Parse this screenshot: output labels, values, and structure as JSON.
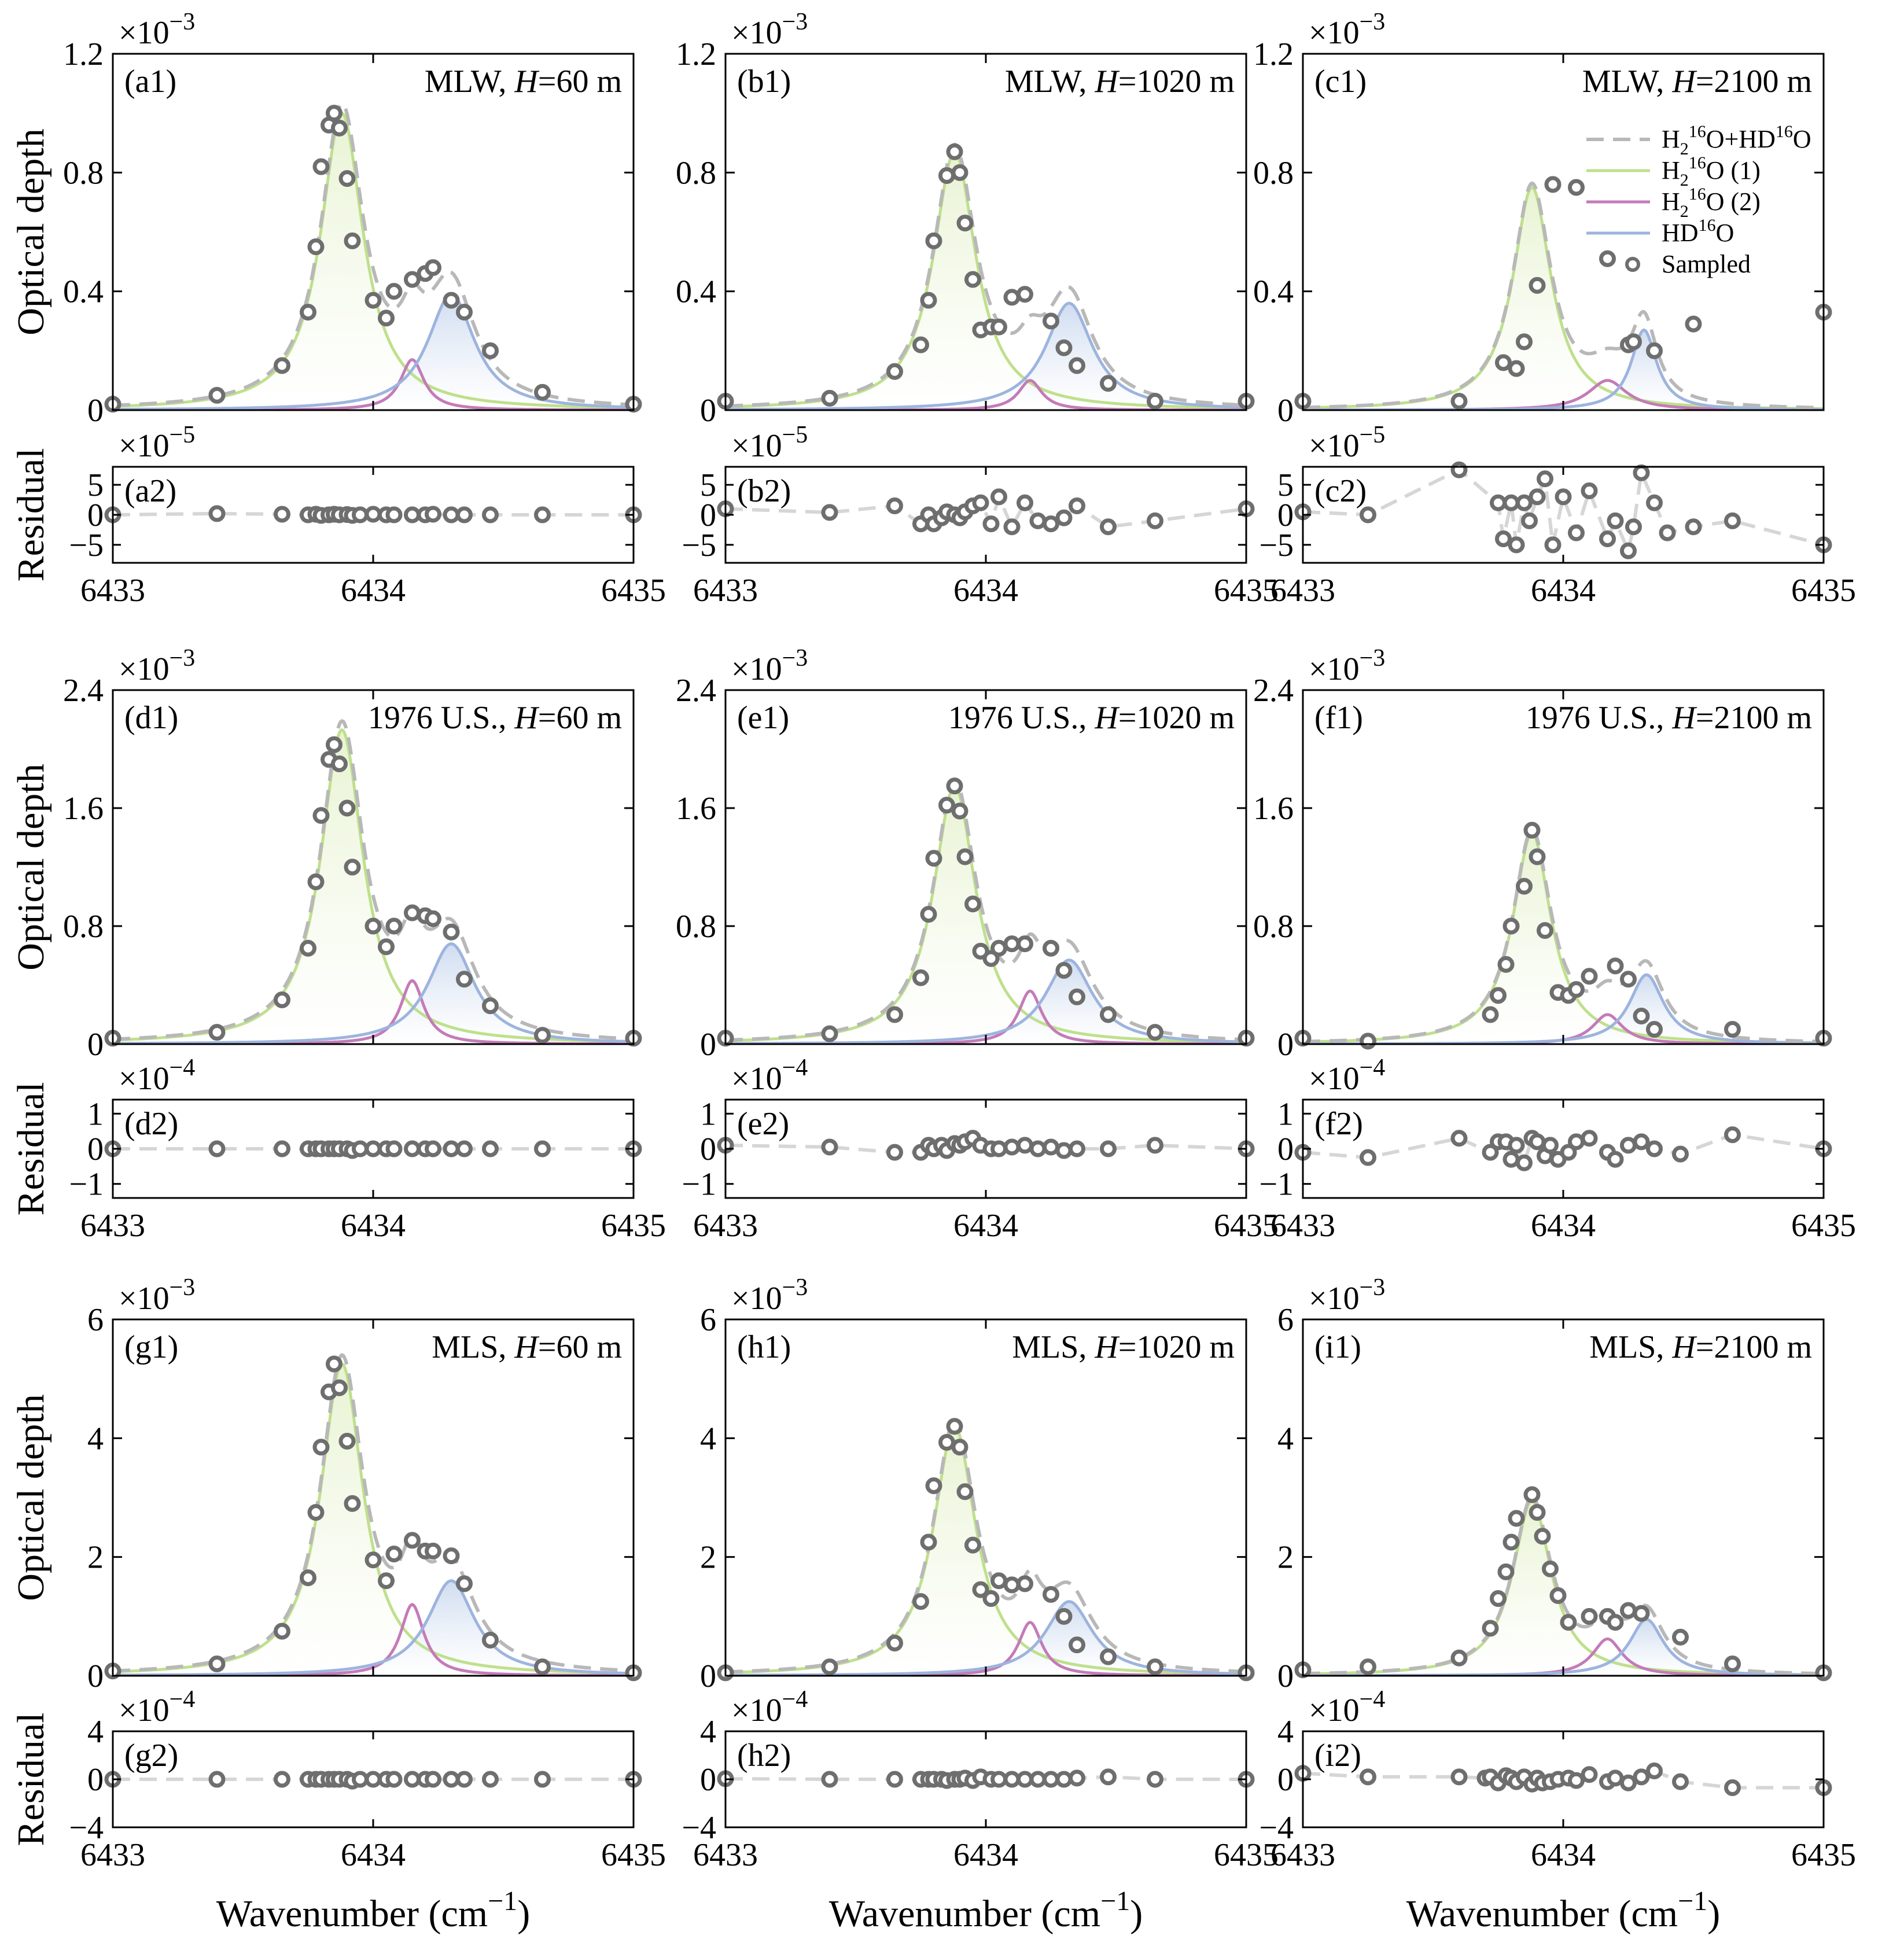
{
  "figure": {
    "xlabel": "Wavenumber (cm",
    "xlabel_sup": "−1",
    "xlabel_close": ")",
    "ylabel_top": "Optical depth",
    "ylabel_bottom": "Residual",
    "times": "×10"
  },
  "legend": {
    "items": [
      {
        "key": "total",
        "base": "H",
        "sub": "2",
        "sup": "16",
        "rest": "O+HD",
        "sup2": "16",
        "end": "O"
      },
      {
        "key": "h2o1",
        "base": "H",
        "sub": "2",
        "sup": "16",
        "rest": "O (1)",
        "sup2": "",
        "end": ""
      },
      {
        "key": "h2o2",
        "base": "H",
        "sub": "2",
        "sup": "16",
        "rest": "O (2)",
        "sup2": "",
        "end": ""
      },
      {
        "key": "hdo",
        "base": "HD",
        "sub": "",
        "sup": "16",
        "rest": "O",
        "sup2": "",
        "end": ""
      },
      {
        "key": "sampled",
        "base": "Sampled",
        "sub": "",
        "sup": "",
        "rest": "",
        "sup2": "",
        "end": ""
      }
    ]
  },
  "colors": {
    "total": "#b8b8b8",
    "h2o1": "#bfe08c",
    "h2o1_fill": "#e8f3d2",
    "h2o2": "#c47bb8",
    "hdo": "#9db4de",
    "hdo_fill": "#cfdcf0",
    "sampled": "#6e6e6e",
    "residual_line": "#d6d6d6"
  },
  "chart_data": [
    {
      "type": "line",
      "id": "a",
      "title": "MLW, ",
      "hval": "=60 m",
      "label1": "(a1)",
      "label2": "(a2)",
      "ymax": 1.2,
      "yticks": [
        "0",
        "0.4",
        "0.8",
        "1.2"
      ],
      "exp": "−3",
      "rmax": 8,
      "rticks": [
        "−5",
        "0",
        "5"
      ],
      "rtickvals": [
        -5,
        0,
        5
      ],
      "rexp": "−5",
      "xlim": [
        6433,
        6435
      ],
      "xticks": [
        "6433",
        "6434",
        "6435"
      ],
      "p1": {
        "x0": 6433.88,
        "A": 1.0,
        "w": 0.1
      },
      "p2": {
        "x0": 6434.15,
        "A": 0.17,
        "w": 0.055
      },
      "p3": {
        "x0": 6434.3,
        "A": 0.39,
        "w": 0.11
      },
      "y_points": [
        0.02,
        0.05,
        0.15,
        0.33,
        0.55,
        0.82,
        0.96,
        1.0,
        0.95,
        0.78,
        0.57,
        0.37,
        0.31,
        0.4,
        0.44,
        0.46,
        0.48,
        0.37,
        0.33,
        0.2,
        0.06,
        0.02
      ],
      "residual_x": [
        6433,
        6433.4,
        6433.65,
        6433.75,
        6433.78,
        6433.8,
        6433.83,
        6433.85,
        6433.87,
        6433.9,
        6433.92,
        6433.95,
        6434.0,
        6434.05,
        6434.08,
        6434.15,
        6434.2,
        6434.23,
        6434.3,
        6434.35,
        6434.45,
        6434.65,
        6435
      ],
      "residual_y": [
        0,
        0.2,
        0.1,
        0,
        0.1,
        -0.1,
        0,
        0.1,
        0,
        0.05,
        -0.1,
        0,
        0.1,
        0,
        0,
        0,
        0,
        0.1,
        0,
        0,
        0,
        0,
        0
      ]
    },
    {
      "type": "line",
      "id": "b",
      "title": "MLW, ",
      "hval": "=1020 m",
      "label1": "(b1)",
      "label2": "(b2)",
      "ymax": 1.2,
      "yticks": [
        "0",
        "0.4",
        "0.8",
        "1.2"
      ],
      "exp": "−3",
      "rmax": 8,
      "rticks": [
        "−5",
        "0",
        "5"
      ],
      "rtickvals": [
        -5,
        0,
        5
      ],
      "rexp": "−5",
      "xlim": [
        6433,
        6435
      ],
      "xticks": [
        "6433",
        "6434",
        "6435"
      ],
      "p1": {
        "x0": 6433.88,
        "A": 0.87,
        "w": 0.1
      },
      "p2": {
        "x0": 6434.17,
        "A": 0.1,
        "w": 0.055
      },
      "p3": {
        "x0": 6434.32,
        "A": 0.36,
        "w": 0.11
      },
      "y_points": [
        0.03,
        0.04,
        0.13,
        0.22,
        0.37,
        0.57,
        0.79,
        0.87,
        0.8,
        0.63,
        0.44,
        0.27,
        0.28,
        0.28,
        0.38,
        0.39,
        0.3,
        0.21,
        0.15,
        0.09,
        0.03,
        0.03
      ],
      "residual_x": [
        6433,
        6433.4,
        6433.65,
        6433.75,
        6433.78,
        6433.8,
        6433.83,
        6433.85,
        6433.88,
        6433.9,
        6433.92,
        6433.95,
        6433.98,
        6434.02,
        6434.05,
        6434.1,
        6434.15,
        6434.2,
        6434.25,
        6434.3,
        6434.35,
        6434.47,
        6434.65,
        6435
      ],
      "residual_y": [
        1,
        0.4,
        1.5,
        -1.5,
        0,
        -1.5,
        -0.5,
        0.5,
        0,
        -0.5,
        0.5,
        1.5,
        2,
        -1.5,
        3,
        -2,
        2,
        -1,
        -1.5,
        -0.5,
        1.5,
        -2,
        -1,
        1
      ]
    },
    {
      "type": "line",
      "id": "c",
      "title": "MLW, ",
      "hval": "=2100 m",
      "label1": "(c1)",
      "label2": "(c2)",
      "ymax": 1.2,
      "yticks": [
        "0",
        "0.4",
        "0.8",
        "1.2"
      ],
      "exp": "−3",
      "rmax": 8,
      "rticks": [
        "−5",
        "0",
        "5"
      ],
      "rtickvals": [
        -5,
        0,
        5
      ],
      "rexp": "−5",
      "xlim": [
        6433,
        6435
      ],
      "xticks": [
        "6433",
        "6434",
        "6435"
      ],
      "p1": {
        "x0": 6433.88,
        "A": 0.75,
        "w": 0.09
      },
      "p2": {
        "x0": 6434.17,
        "A": 0.1,
        "w": 0.09
      },
      "p3": {
        "x0": 6434.31,
        "A": 0.27,
        "w": 0.06
      },
      "y_points": [
        0.03,
        0.03,
        0.16,
        0.14,
        0.23,
        0.42,
        0.76,
        0.75,
        0.51,
        0.22,
        0.23,
        0.2,
        0.29,
        0.33
      ],
      "residual_x": [
        6433,
        6433.25,
        6433.6,
        6433.75,
        6433.77,
        6433.8,
        6433.82,
        6433.85,
        6433.87,
        6433.9,
        6433.93,
        6433.96,
        6434.0,
        6434.05,
        6434.1,
        6434.17,
        6434.2,
        6434.25,
        6434.27,
        6434.3,
        6434.35,
        6434.4,
        6434.5,
        6434.65,
        6435
      ],
      "residual_y": [
        0.5,
        0,
        7.5,
        2,
        -4,
        2,
        -5,
        2,
        -1,
        3,
        6,
        -5,
        3,
        -3,
        4,
        -4,
        -1,
        -6,
        -2,
        7,
        2,
        -3,
        -2,
        -1,
        -5
      ]
    },
    {
      "type": "line",
      "id": "d",
      "title": "1976 U.S., ",
      "hval": "=60 m",
      "label1": "(d1)",
      "label2": "(d2)",
      "ymax": 2.4,
      "yticks": [
        "0",
        "0.8",
        "1.6",
        "2.4"
      ],
      "exp": "−3",
      "rmax": 1.4,
      "rticks": [
        "−1",
        "0",
        "1"
      ],
      "rtickvals": [
        -1,
        0,
        1
      ],
      "rexp": "−4",
      "xlim": [
        6433,
        6435
      ],
      "xticks": [
        "6433",
        "6434",
        "6435"
      ],
      "p1": {
        "x0": 6433.88,
        "A": 2.13,
        "w": 0.1
      },
      "p2": {
        "x0": 6434.15,
        "A": 0.43,
        "w": 0.055
      },
      "p3": {
        "x0": 6434.3,
        "A": 0.68,
        "w": 0.11
      },
      "y_points": [
        0.04,
        0.08,
        0.3,
        0.65,
        1.1,
        1.55,
        1.93,
        2.03,
        1.9,
        1.6,
        1.2,
        0.8,
        0.66,
        0.8,
        0.89,
        0.87,
        0.85,
        0.76,
        0.44,
        0.26,
        0.06,
        0.04
      ],
      "residual_x": [
        6433,
        6433.4,
        6433.65,
        6433.75,
        6433.78,
        6433.8,
        6433.83,
        6433.85,
        6433.87,
        6433.9,
        6433.92,
        6433.95,
        6434.0,
        6434.05,
        6434.08,
        6434.15,
        6434.2,
        6434.23,
        6434.3,
        6434.35,
        6434.45,
        6434.65,
        6435
      ],
      "residual_y": [
        0,
        0,
        0,
        0,
        0,
        0,
        0,
        0,
        0,
        0,
        -0.05,
        0,
        0,
        0,
        0,
        0,
        0,
        0,
        0,
        0,
        0,
        0,
        0
      ]
    },
    {
      "type": "line",
      "id": "e",
      "title": "1976 U.S., ",
      "hval": "=1020 m",
      "label1": "(e1)",
      "label2": "(e2)",
      "ymax": 2.4,
      "yticks": [
        "0",
        "0.8",
        "1.6",
        "2.4"
      ],
      "exp": "−3",
      "rmax": 1.4,
      "rticks": [
        "−1",
        "0",
        "1"
      ],
      "rtickvals": [
        -1,
        0,
        1
      ],
      "rexp": "−4",
      "xlim": [
        6433,
        6435
      ],
      "xticks": [
        "6433",
        "6434",
        "6435"
      ],
      "p1": {
        "x0": 6433.88,
        "A": 1.75,
        "w": 0.1
      },
      "p2": {
        "x0": 6434.17,
        "A": 0.36,
        "w": 0.055
      },
      "p3": {
        "x0": 6434.32,
        "A": 0.57,
        "w": 0.11
      },
      "y_points": [
        0.04,
        0.07,
        0.2,
        0.45,
        0.88,
        1.26,
        1.62,
        1.75,
        1.58,
        1.27,
        0.95,
        0.63,
        0.58,
        0.65,
        0.68,
        0.68,
        0.65,
        0.5,
        0.32,
        0.2,
        0.08,
        0.04
      ],
      "residual_x": [
        6433,
        6433.4,
        6433.65,
        6433.75,
        6433.78,
        6433.8,
        6433.83,
        6433.85,
        6433.88,
        6433.9,
        6433.92,
        6433.95,
        6433.98,
        6434.02,
        6434.05,
        6434.1,
        6434.15,
        6434.2,
        6434.25,
        6434.3,
        6434.35,
        6434.47,
        6434.65,
        6435
      ],
      "residual_y": [
        0.1,
        0.05,
        -0.1,
        -0.1,
        0.1,
        0,
        0.1,
        -0.05,
        0.15,
        0.1,
        0.2,
        0.3,
        0.1,
        0,
        0,
        0.05,
        0.1,
        0,
        0.05,
        -0.05,
        0,
        0,
        0.1,
        0
      ]
    },
    {
      "type": "line",
      "id": "f",
      "title": "1976 U.S., ",
      "hval": "=2100 m",
      "label1": "(f1)",
      "label2": "(f2)",
      "ymax": 2.4,
      "yticks": [
        "0",
        "0.8",
        "1.6",
        "2.4"
      ],
      "exp": "−3",
      "rmax": 1.4,
      "rticks": [
        "−1",
        "0",
        "1"
      ],
      "rtickvals": [
        -1,
        0,
        1
      ],
      "rexp": "−4",
      "xlim": [
        6433,
        6435
      ],
      "xticks": [
        "6433",
        "6434",
        "6435"
      ],
      "p1": {
        "x0": 6433.88,
        "A": 1.43,
        "w": 0.09
      },
      "p2": {
        "x0": 6434.17,
        "A": 0.2,
        "w": 0.07
      },
      "p3": {
        "x0": 6434.32,
        "A": 0.47,
        "w": 0.08
      },
      "y_points": [
        0.04,
        0.02,
        0.2,
        0.33,
        0.54,
        0.8,
        1.07,
        1.45,
        1.27,
        0.77,
        0.35,
        0.33,
        0.37,
        0.46,
        0.53,
        0.44,
        0.19,
        0.1,
        0.1,
        0.04
      ],
      "residual_x": [
        6433,
        6433.25,
        6433.6,
        6433.72,
        6433.75,
        6433.78,
        6433.8,
        6433.82,
        6433.85,
        6433.88,
        6433.9,
        6433.93,
        6433.95,
        6433.98,
        6434.02,
        6434.05,
        6434.1,
        6434.17,
        6434.2,
        6434.25,
        6434.3,
        6434.35,
        6434.45,
        6434.65,
        6435
      ],
      "residual_y": [
        -0.1,
        -0.25,
        0.3,
        -0.1,
        0.2,
        0.2,
        -0.3,
        0.1,
        -0.4,
        0.3,
        0.2,
        -0.2,
        0.1,
        -0.3,
        -0.1,
        0.2,
        0.3,
        -0.1,
        -0.3,
        0.1,
        0.2,
        0,
        -0.15,
        0.4,
        0
      ]
    },
    {
      "type": "line",
      "id": "g",
      "title": "MLS, ",
      "hval": "=60 m",
      "label1": "(g1)",
      "label2": "(g2)",
      "ymax": 6,
      "yticks": [
        "0",
        "2",
        "4",
        "6"
      ],
      "exp": "−3",
      "rmax": 4,
      "rticks": [
        "−4",
        "0",
        "4"
      ],
      "rtickvals": [
        -4,
        0,
        4
      ],
      "rexp": "−4",
      "xlim": [
        6433,
        6435
      ],
      "xticks": [
        "6433",
        "6434",
        "6435"
      ],
      "p1": {
        "x0": 6433.88,
        "A": 5.25,
        "w": 0.1
      },
      "p2": {
        "x0": 6434.15,
        "A": 1.2,
        "w": 0.055
      },
      "p3": {
        "x0": 6434.3,
        "A": 1.6,
        "w": 0.11
      },
      "y_points": [
        0.08,
        0.2,
        0.75,
        1.65,
        2.75,
        3.85,
        4.78,
        5.25,
        4.85,
        3.95,
        2.9,
        1.95,
        1.6,
        2.05,
        2.28,
        2.1,
        2.1,
        2.02,
        1.55,
        0.6,
        0.15,
        0.05
      ],
      "residual_x": [
        6433,
        6433.4,
        6433.65,
        6433.75,
        6433.78,
        6433.8,
        6433.83,
        6433.85,
        6433.87,
        6433.9,
        6433.92,
        6433.95,
        6434.0,
        6434.05,
        6434.08,
        6434.15,
        6434.2,
        6434.23,
        6434.3,
        6434.35,
        6434.45,
        6434.65,
        6435
      ],
      "residual_y": [
        0,
        0,
        0,
        0,
        0,
        0,
        0,
        0,
        0,
        0,
        -0.15,
        0,
        0,
        0,
        0,
        0,
        0,
        0,
        0,
        0,
        0,
        0,
        0
      ]
    },
    {
      "type": "line",
      "id": "h",
      "title": "MLS, ",
      "hval": "=1020 m",
      "label1": "(h1)",
      "label2": "(h2)",
      "ymax": 6,
      "yticks": [
        "0",
        "2",
        "4",
        "6"
      ],
      "exp": "−3",
      "rmax": 4,
      "rticks": [
        "−4",
        "0",
        "4"
      ],
      "rtickvals": [
        -4,
        0,
        4
      ],
      "rexp": "−4",
      "xlim": [
        6433,
        6435
      ],
      "xticks": [
        "6433",
        "6434",
        "6435"
      ],
      "p1": {
        "x0": 6433.88,
        "A": 4.2,
        "w": 0.1
      },
      "p2": {
        "x0": 6434.17,
        "A": 0.9,
        "w": 0.055
      },
      "p3": {
        "x0": 6434.32,
        "A": 1.25,
        "w": 0.11
      },
      "y_points": [
        0.05,
        0.15,
        0.55,
        1.25,
        2.25,
        3.2,
        3.93,
        4.2,
        3.85,
        3.1,
        2.2,
        1.45,
        1.3,
        1.6,
        1.53,
        1.55,
        1.37,
        1.0,
        0.52,
        0.32,
        0.15,
        0.05
      ],
      "residual_x": [
        6433,
        6433.4,
        6433.65,
        6433.75,
        6433.78,
        6433.8,
        6433.83,
        6433.85,
        6433.88,
        6433.9,
        6433.92,
        6433.95,
        6433.98,
        6434.02,
        6434.05,
        6434.1,
        6434.15,
        6434.2,
        6434.25,
        6434.3,
        6434.35,
        6434.47,
        6434.65,
        6435
      ],
      "residual_y": [
        0.05,
        0,
        0,
        0,
        0,
        0,
        0,
        -0.1,
        0,
        0,
        0.1,
        -0.1,
        0.2,
        0,
        0,
        0,
        0,
        0,
        0,
        0,
        0.1,
        0.2,
        0,
        0
      ]
    },
    {
      "type": "line",
      "id": "i",
      "title": "MLS, ",
      "hval": "=2100 m",
      "label1": "(i1)",
      "label2": "(i2)",
      "ymax": 6,
      "yticks": [
        "0",
        "2",
        "4",
        "6"
      ],
      "exp": "−3",
      "rmax": 4,
      "rticks": [
        "−4",
        "0",
        "4"
      ],
      "rtickvals": [
        -4,
        0,
        4
      ],
      "rexp": "−4",
      "xlim": [
        6433,
        6435
      ],
      "xticks": [
        "6433",
        "6434",
        "6435"
      ],
      "p1": {
        "x0": 6433.88,
        "A": 2.95,
        "w": 0.09
      },
      "p2": {
        "x0": 6434.17,
        "A": 0.62,
        "w": 0.07
      },
      "p3": {
        "x0": 6434.32,
        "A": 0.95,
        "w": 0.08
      },
      "y_points": [
        0.1,
        0.15,
        0.3,
        0.8,
        1.3,
        1.75,
        2.25,
        2.65,
        3.05,
        2.75,
        2.35,
        1.8,
        1.35,
        0.9,
        1.0,
        1.0,
        0.9,
        1.1,
        1.05,
        0.65,
        0.2,
        0.05
      ],
      "residual_x": [
        6433,
        6433.25,
        6433.6,
        6433.7,
        6433.72,
        6433.75,
        6433.78,
        6433.8,
        6433.82,
        6433.85,
        6433.88,
        6433.9,
        6433.92,
        6433.95,
        6433.98,
        6434.02,
        6434.05,
        6434.1,
        6434.17,
        6434.2,
        6434.25,
        6434.3,
        6434.35,
        6434.45,
        6434.65,
        6435
      ],
      "residual_y": [
        0.5,
        0.2,
        0.2,
        0.1,
        0.2,
        -0.3,
        0.3,
        0.1,
        -0.2,
        0.2,
        -0.4,
        0.1,
        -0.3,
        -0.2,
        0,
        0.1,
        -0.1,
        0.4,
        -0.2,
        0.1,
        -0.3,
        0.2,
        0.7,
        -0.2,
        -0.7,
        -0.7
      ]
    }
  ]
}
